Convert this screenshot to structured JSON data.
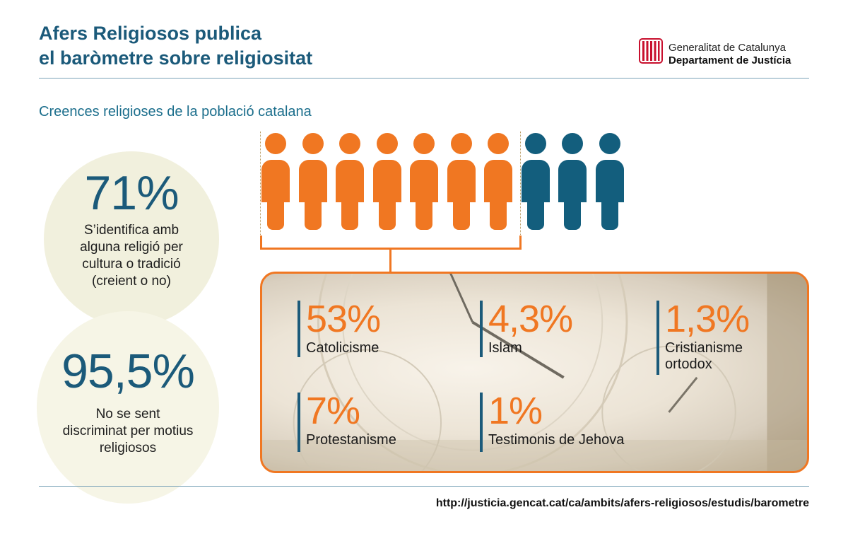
{
  "header": {
    "title_line1": "Afers Religiosos publica",
    "title_line2": "el baròmetre sobre religiositat"
  },
  "logo": {
    "line1": "Generalitat de Catalunya",
    "line2": "Departament de Justícia"
  },
  "subtitle": "Creences religioses de la població catalana",
  "circles": [
    {
      "value": "71%",
      "lines": [
        "S’identifica amb",
        "alguna religió per",
        "cultura o tradició",
        "(creient o no)"
      ]
    },
    {
      "value": "95,5%",
      "lines": [
        "No se sent",
        "discriminat per motius",
        "religiosos"
      ]
    }
  ],
  "pictogram": {
    "highlighted": 7,
    "total": 10,
    "highlight_color": "#f07722",
    "other_color": "#135e7d"
  },
  "stats": [
    {
      "value": "53%",
      "label_lines": [
        "Catolicisme"
      ]
    },
    {
      "value": "4,3%",
      "label_lines": [
        "Islam"
      ]
    },
    {
      "value": "1,3%",
      "label_lines": [
        "Cristianisme",
        "ortodox"
      ]
    },
    {
      "value": "7%",
      "label_lines": [
        "Protestanisme"
      ]
    },
    {
      "value": "1%",
      "label_lines": [
        "Testimonis de Jehova"
      ]
    }
  ],
  "footer": {
    "url": "http://justicia.gencat.cat/ca/ambits/afers-religiosos/estudis/barometre"
  },
  "colors": {
    "accent": "#f07722",
    "brand": "#1b5a7a",
    "circle_bg": "#f1f0dd"
  }
}
